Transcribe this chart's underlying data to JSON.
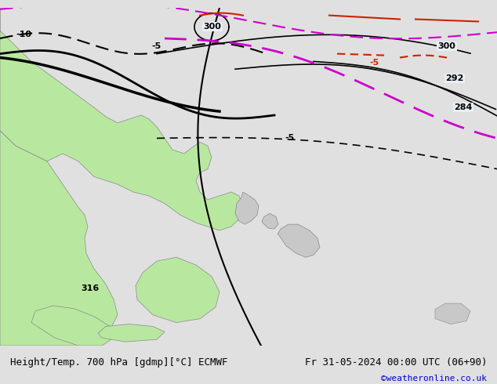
{
  "title_left": "Height/Temp. 700 hPa [gdmp][°C] ECMWF",
  "title_right": "Fr 31-05-2024 00:00 UTC (06+90)",
  "credit": "©weatheronline.co.uk",
  "background_color": "#d0d8e8",
  "land_green_color": "#b8e8a0",
  "land_light_green_color": "#d4f0c0",
  "land_gray_color": "#c8c8c8",
  "sea_color": "#e8eef4",
  "contour_black_color": "#000000",
  "contour_magenta_color": "#cc00cc",
  "contour_red_color": "#cc2200",
  "contour_dashed_black": "#000000",
  "contour_dashed_magenta": "#cc00cc",
  "bottom_bar_color": "#e0e0e0",
  "font_size_title": 9,
  "font_size_credit": 8,
  "font_size_labels": 8,
  "fig_width": 6.34,
  "fig_height": 4.9
}
